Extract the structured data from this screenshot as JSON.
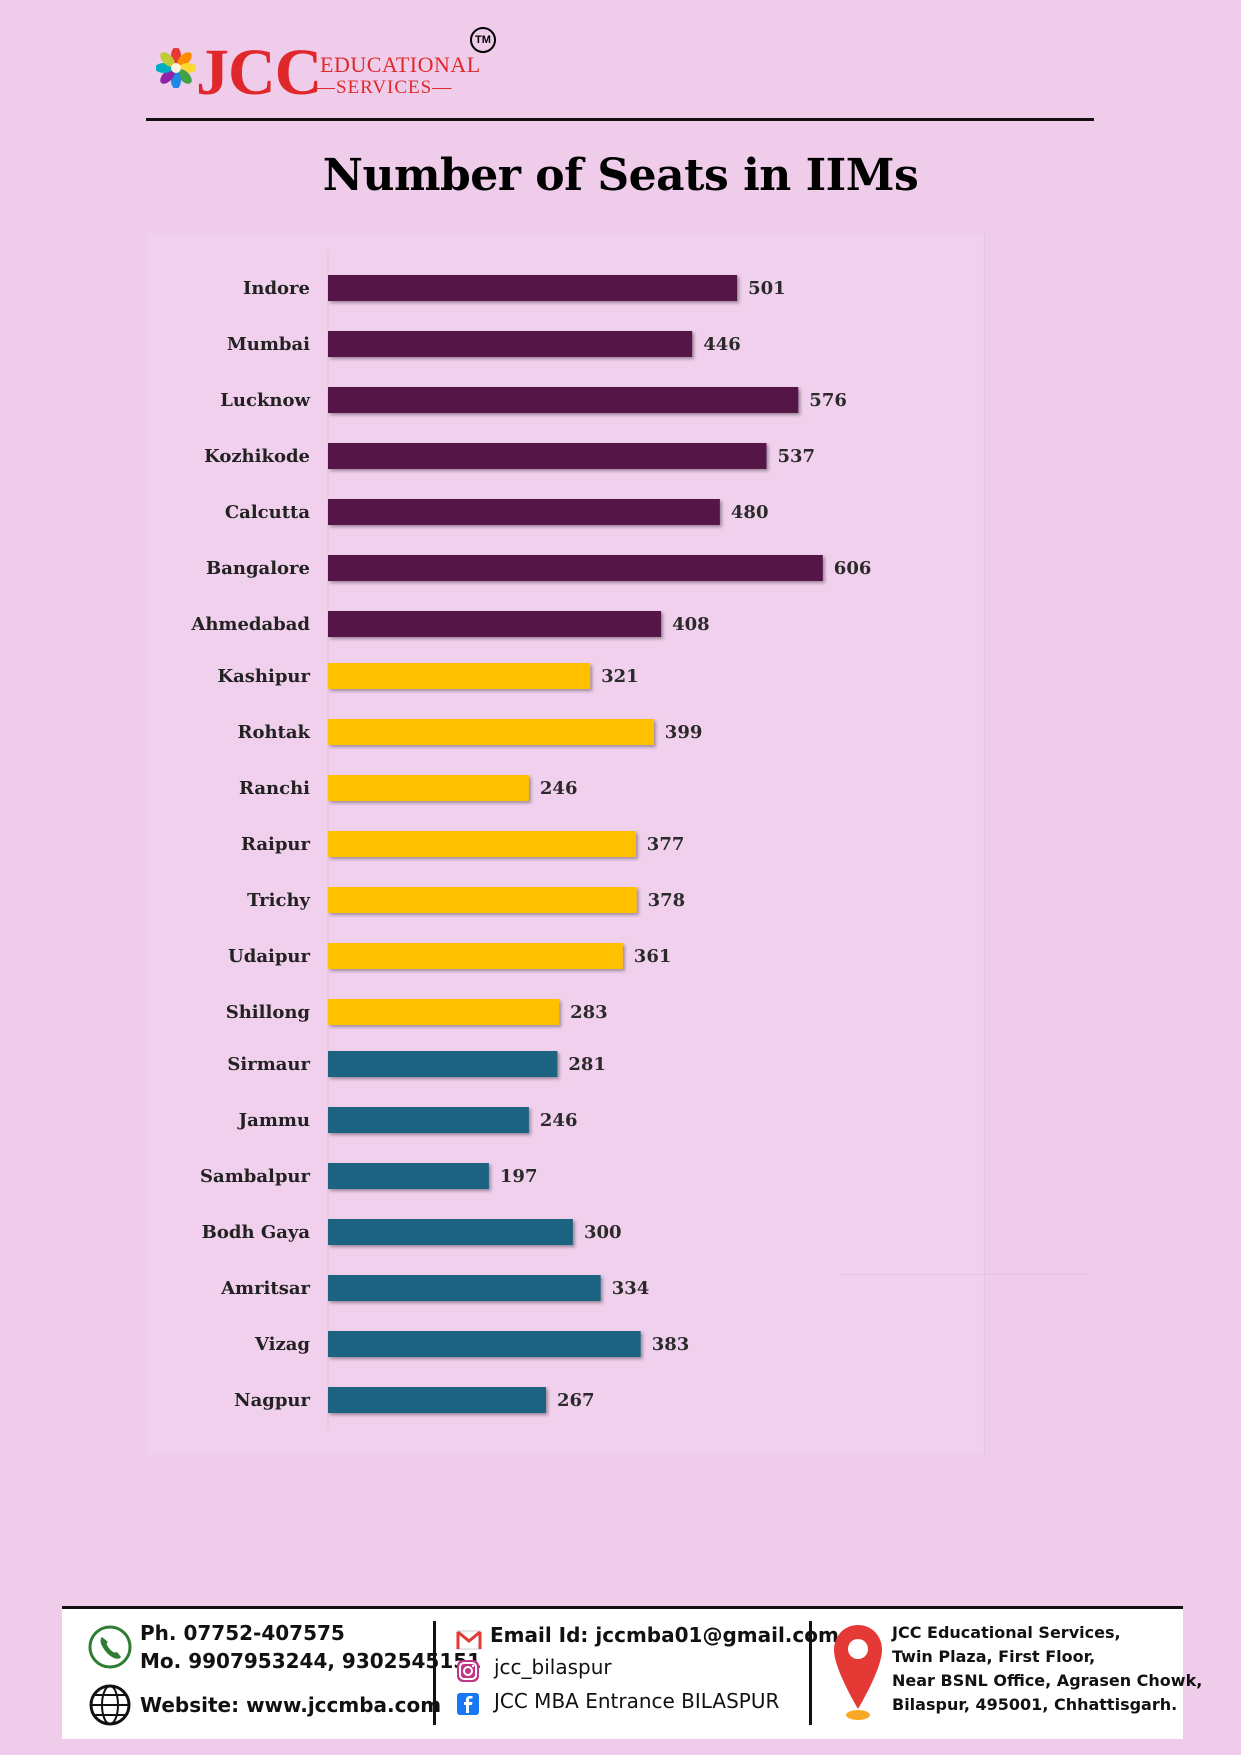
{
  "header": {
    "brand": "JCC",
    "brand_line1": "EDUCATIONAL",
    "brand_line2": "SERVICES",
    "trademark": "TM"
  },
  "colors": {
    "background": "#efcdea",
    "series_1": "#541847",
    "series_2": "#ffc000",
    "series_3": "#1f6381",
    "brand_red": "#e0282c"
  },
  "chart_data": {
    "type": "bar",
    "orientation": "horizontal",
    "title": "Number of Seats in IIMs",
    "xlabel": "",
    "ylabel": "",
    "xlim": [
      0,
      700
    ],
    "grid": false,
    "legend": "none",
    "categories": [
      "Indore",
      "Mumbai",
      "Lucknow",
      "Kozhikode",
      "Calcutta",
      "Bangalore",
      "Ahmedabad",
      "Kashipur",
      "Rohtak",
      "Ranchi",
      "Raipur",
      "Trichy",
      "Udaipur",
      "Shillong",
      "Sirmaur",
      "Jammu",
      "Sambalpur",
      "Bodh Gaya",
      "Amritsar",
      "Vizag",
      "Nagpur"
    ],
    "values": [
      501,
      446,
      576,
      537,
      480,
      606,
      408,
      321,
      399,
      246,
      377,
      378,
      361,
      283,
      281,
      246,
      197,
      300,
      334,
      383,
      267
    ],
    "bar_colors": [
      "#541847",
      "#541847",
      "#541847",
      "#541847",
      "#541847",
      "#541847",
      "#541847",
      "#ffc000",
      "#ffc000",
      "#ffc000",
      "#ffc000",
      "#ffc000",
      "#ffc000",
      "#ffc000",
      "#1f6381",
      "#1f6381",
      "#1f6381",
      "#1f6381",
      "#1f6381",
      "#1f6381",
      "#1f6381"
    ]
  },
  "footer": {
    "phone": "Ph. 07752-407575",
    "mobile": "Mo. 9907953244, 9302545151",
    "website": "Website: www.jccmba.com",
    "email": "Email Id: jccmba01@gmail.com",
    "instagram": "jcc_bilaspur",
    "facebook": "JCC MBA Entrance BILASPUR",
    "address_line1": "JCC Educational Services,",
    "address_line2": "Twin Plaza, First Floor,",
    "address_line3": "Near BSNL Office, Agrasen Chowk,",
    "address_line4": "Bilaspur, 495001, Chhattisgarh.",
    "icons": [
      "phone-icon",
      "globe-icon",
      "gmail-icon",
      "instagram-icon",
      "facebook-icon",
      "location-pin-icon"
    ]
  }
}
